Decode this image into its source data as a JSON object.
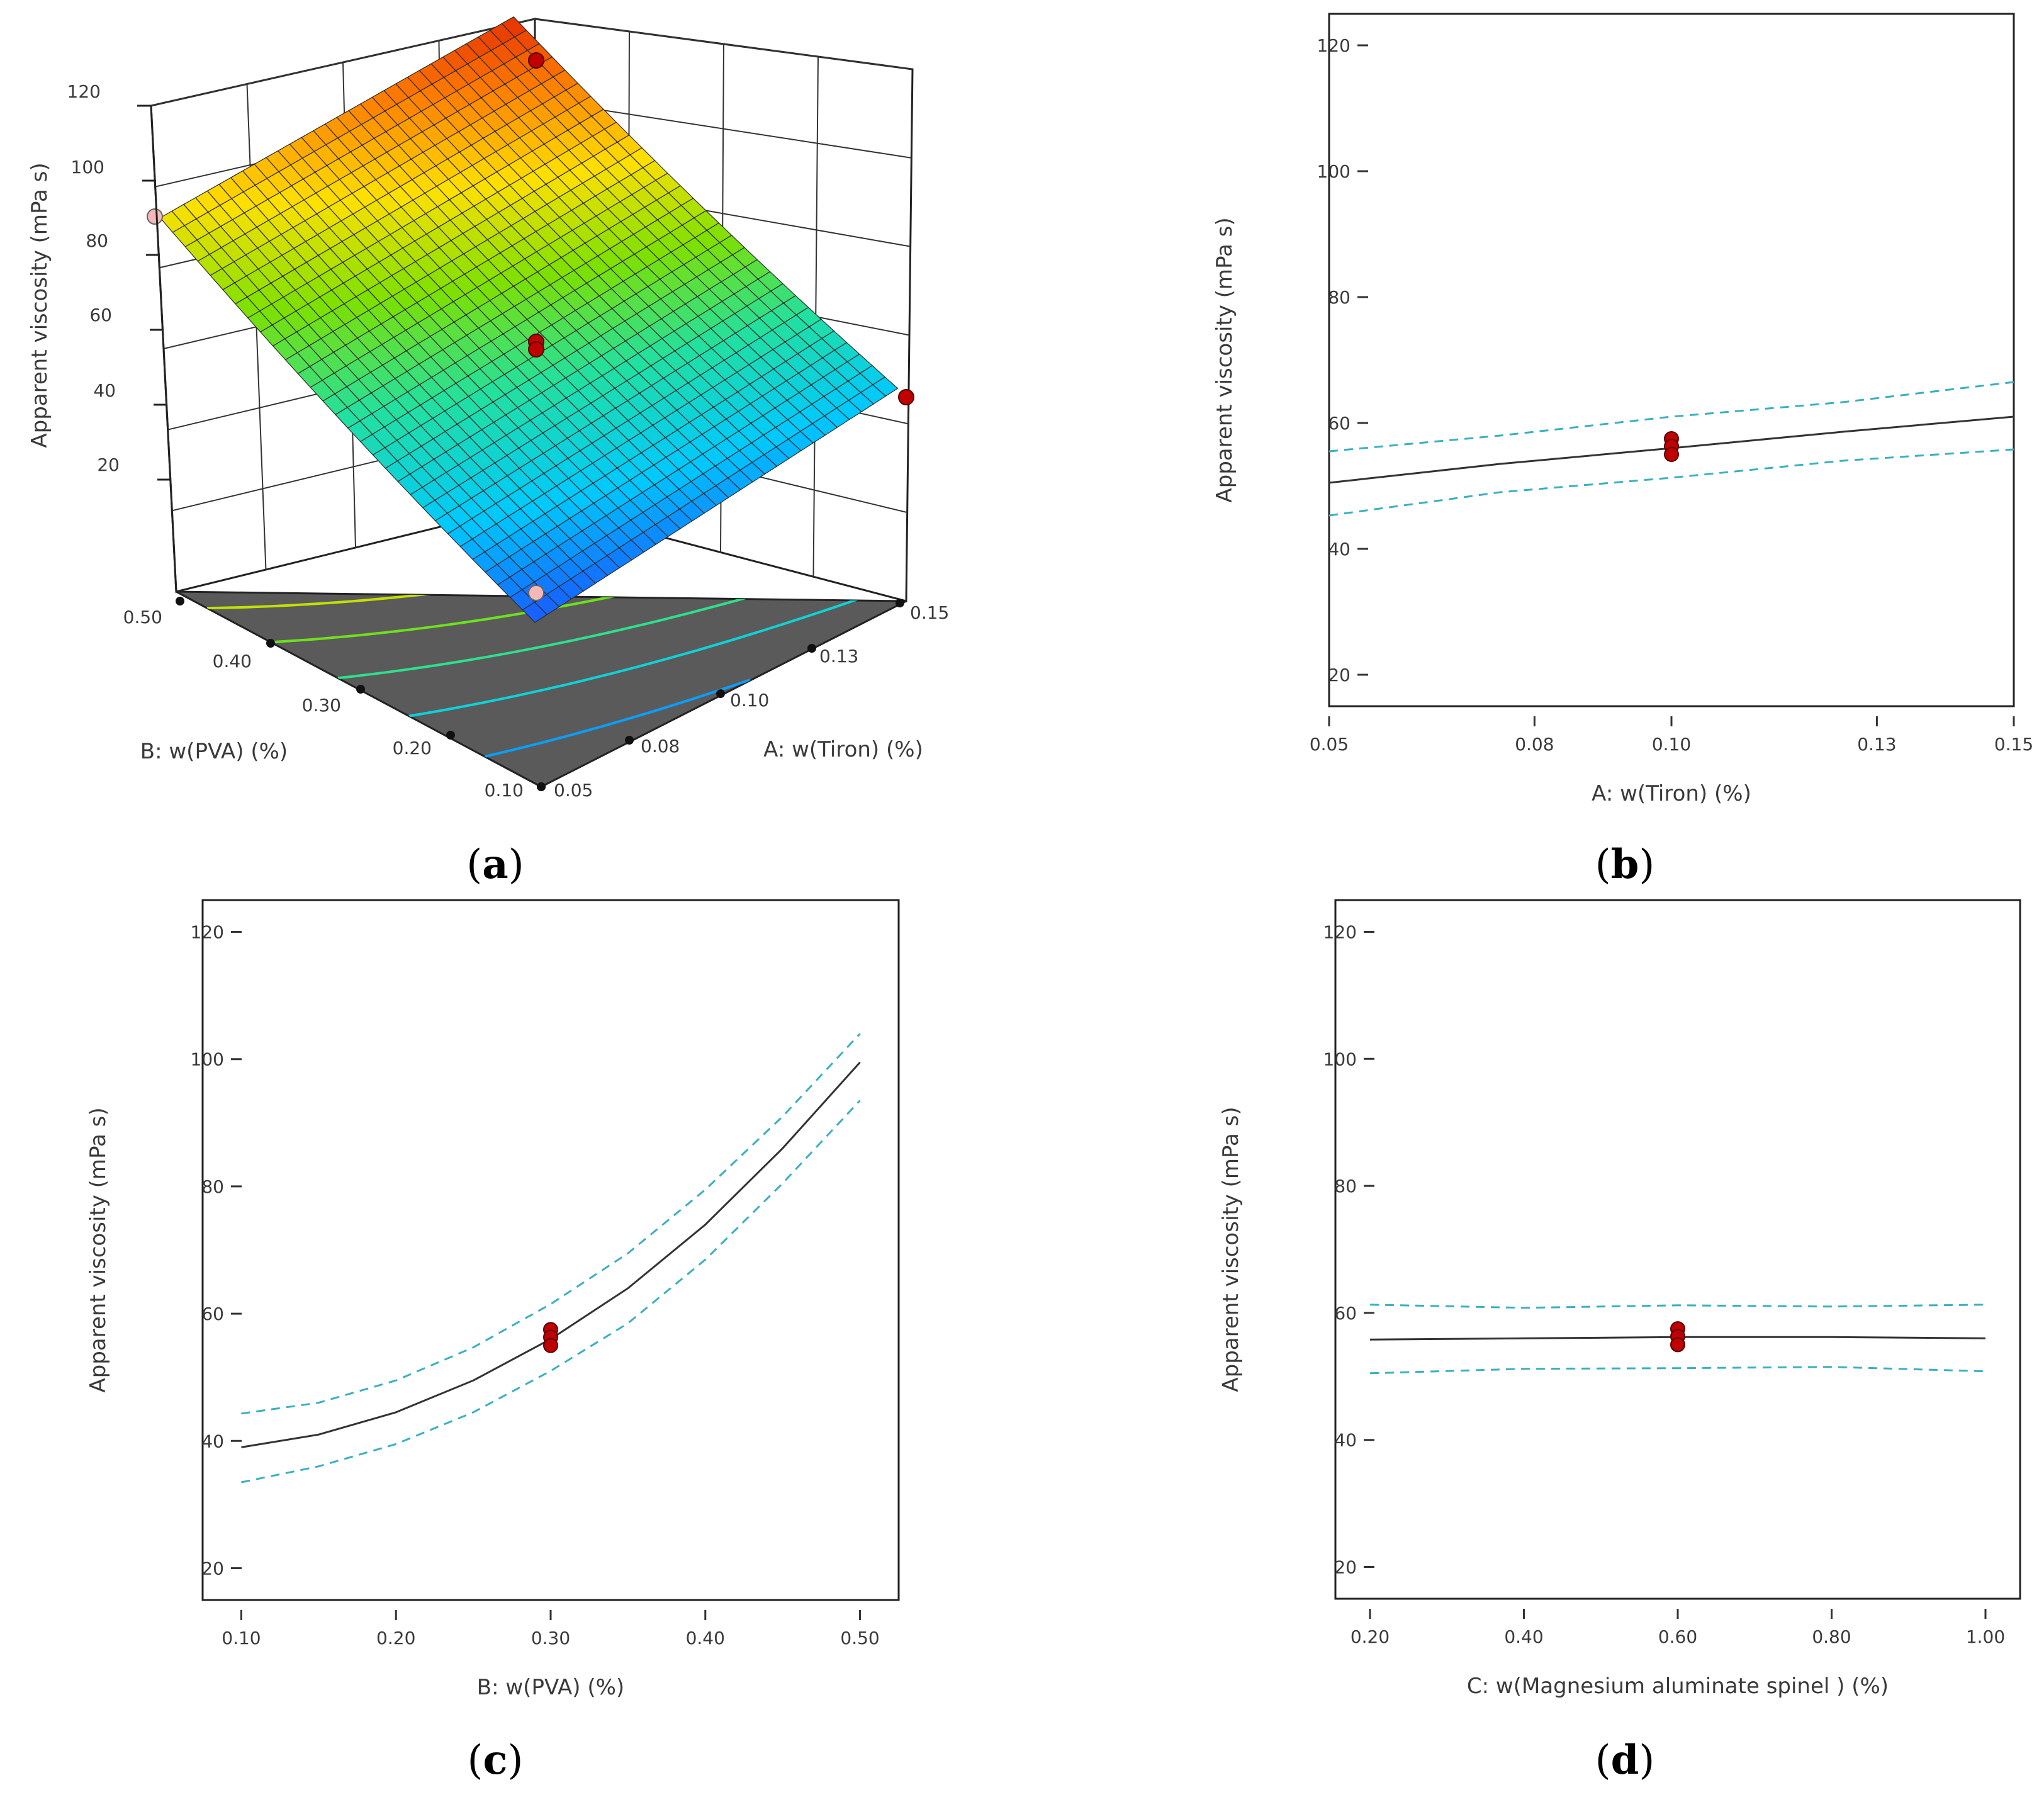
{
  "panels": [
    {
      "id": "a",
      "label": "a"
    },
    {
      "id": "b",
      "label": "b"
    },
    {
      "id": "c",
      "label": "c"
    },
    {
      "id": "d",
      "label": "d"
    }
  ],
  "chart_data": [
    {
      "panel": "a",
      "type": "surface",
      "zlabel": "Apparent viscosity (mPa s)",
      "xlabel": "A: w(Tiron) (%)",
      "ylabel": "B: w(PVA) (%)",
      "x_ticks": [
        "0.05",
        "0.08",
        "0.10",
        "0.13",
        "0.15"
      ],
      "y_ticks": [
        "0.10",
        "0.20",
        "0.30",
        "0.40",
        "0.50"
      ],
      "z_ticks": [
        "20",
        "40",
        "60",
        "80",
        "100",
        "120"
      ],
      "xlim": [
        0.05,
        0.15
      ],
      "ylim": [
        0.1,
        0.5
      ],
      "zlim": [
        0,
        120
      ],
      "corner_values": [
        {
          "A": 0.05,
          "B": 0.1,
          "value": 33
        },
        {
          "A": 0.15,
          "B": 0.1,
          "value": 45
        },
        {
          "A": 0.05,
          "B": 0.5,
          "value": 85
        },
        {
          "A": 0.15,
          "B": 0.5,
          "value": 113
        }
      ],
      "design_points": [
        {
          "A": 0.1,
          "B": 0.3,
          "value": 57
        },
        {
          "A": 0.1,
          "B": 0.3,
          "value": 56
        },
        {
          "A": 0.15,
          "B": 0.1,
          "value": 41
        },
        {
          "A": 0.15,
          "B": 0.5,
          "value": 118
        },
        {
          "A": 0.05,
          "B": 0.5,
          "value": 84
        },
        {
          "A": 0.05,
          "B": 0.1,
          "value": 18
        }
      ],
      "contour_on_floor": true,
      "colormap": [
        "#1e3cff",
        "#00c8ff",
        "#22e0a0",
        "#7ee000",
        "#ffe000",
        "#ff8000",
        "#e02000"
      ]
    },
    {
      "panel": "b",
      "type": "line",
      "xlabel": "A: w(Tiron) (%)",
      "ylabel": "Apparent viscosity (mPa s)",
      "x_ticks": [
        "0.05",
        "0.08",
        "0.10",
        "0.13",
        "0.15"
      ],
      "y_ticks": [
        "20",
        "40",
        "60",
        "80",
        "100",
        "120"
      ],
      "xlim": [
        0.05,
        0.15
      ],
      "ylim": [
        15,
        125
      ],
      "x": [
        0.05,
        0.075,
        0.1,
        0.125,
        0.15
      ],
      "series": [
        {
          "role": "prediction",
          "values": [
            50.5,
            53.5,
            56.0,
            58.6,
            61.0
          ]
        },
        {
          "role": "upper",
          "values": [
            55.5,
            58.0,
            61.0,
            63.3,
            66.5
          ]
        },
        {
          "role": "lower",
          "values": [
            45.3,
            49.0,
            51.3,
            54.0,
            55.8
          ]
        }
      ],
      "points": [
        {
          "x": 0.1,
          "y": 57.5
        },
        {
          "x": 0.1,
          "y": 56.3
        },
        {
          "x": 0.1,
          "y": 55.0
        }
      ]
    },
    {
      "panel": "c",
      "type": "line",
      "xlabel": "B: w(PVA) (%)",
      "ylabel": "Apparent viscosity (mPa s)",
      "x_ticks": [
        "0.10",
        "0.20",
        "0.30",
        "0.40",
        "0.50"
      ],
      "y_ticks": [
        "20",
        "40",
        "60",
        "80",
        "100",
        "120"
      ],
      "xlim": [
        0.075,
        0.525
      ],
      "ylim": [
        15,
        125
      ],
      "x": [
        0.1,
        0.15,
        0.2,
        0.25,
        0.3,
        0.35,
        0.4,
        0.45,
        0.5
      ],
      "series": [
        {
          "role": "prediction",
          "values": [
            39.0,
            41.0,
            44.5,
            49.5,
            56.0,
            64.0,
            74.0,
            86.0,
            99.5
          ]
        },
        {
          "role": "upper",
          "values": [
            44.3,
            46.0,
            49.5,
            54.7,
            61.5,
            69.5,
            79.5,
            91.0,
            104.0
          ]
        },
        {
          "role": "lower",
          "values": [
            33.5,
            36.0,
            39.5,
            44.5,
            51.0,
            58.5,
            68.5,
            80.5,
            93.5
          ]
        }
      ],
      "points": [
        {
          "x": 0.3,
          "y": 57.5
        },
        {
          "x": 0.3,
          "y": 56.3
        },
        {
          "x": 0.3,
          "y": 55.0
        }
      ]
    },
    {
      "panel": "d",
      "type": "line",
      "xlabel": "C: w(Magnesium aluminate spinel ) (%)",
      "ylabel": "Apparent viscosity (mPa s)",
      "x_ticks": [
        "0.20",
        "0.40",
        "0.60",
        "0.80",
        "1.00"
      ],
      "y_ticks": [
        "20",
        "40",
        "60",
        "80",
        "100",
        "120"
      ],
      "xlim": [
        0.155,
        1.045
      ],
      "ylim": [
        15,
        125
      ],
      "x": [
        0.2,
        0.4,
        0.6,
        0.8,
        1.0
      ],
      "series": [
        {
          "role": "prediction",
          "values": [
            55.8,
            56.0,
            56.2,
            56.2,
            56.0
          ]
        },
        {
          "role": "upper",
          "values": [
            61.3,
            60.8,
            61.2,
            61.0,
            61.3
          ]
        },
        {
          "role": "lower",
          "values": [
            50.5,
            51.2,
            51.3,
            51.5,
            50.8
          ]
        }
      ],
      "points": [
        {
          "x": 0.6,
          "y": 57.5
        },
        {
          "x": 0.6,
          "y": 56.3
        },
        {
          "x": 0.6,
          "y": 55.0
        }
      ]
    }
  ]
}
